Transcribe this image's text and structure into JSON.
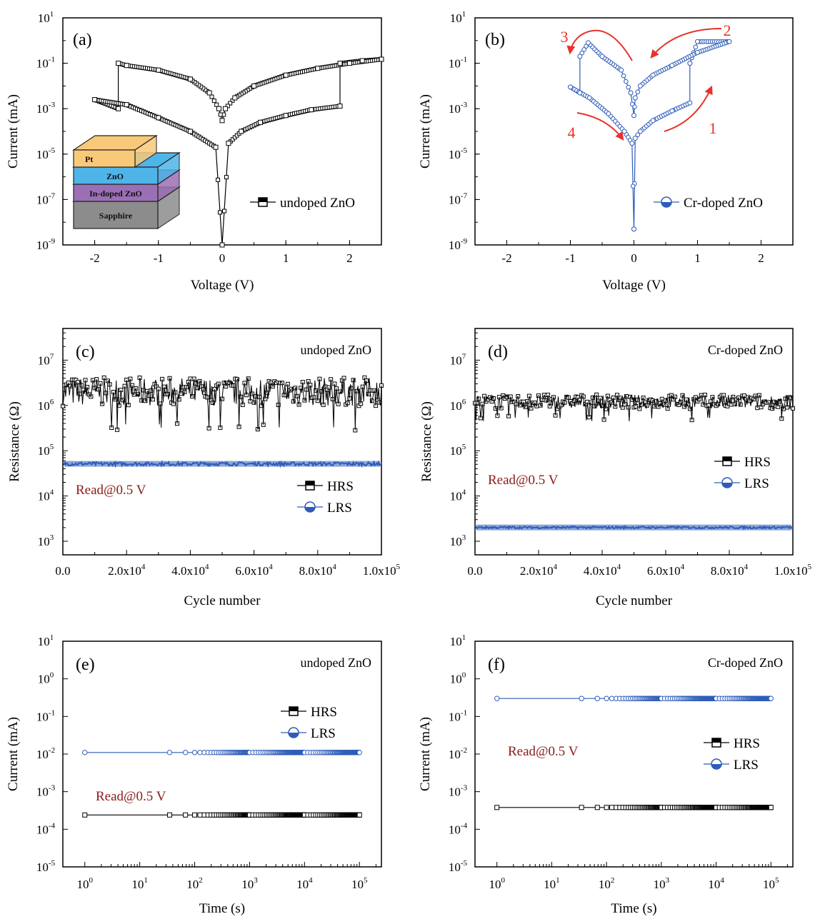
{
  "chart_data": [
    {
      "panel": "(a)",
      "type": "line",
      "xlabel": "Voltage (V)",
      "ylabel": "Current (mA)",
      "xlim": [
        -2.5,
        2.5
      ],
      "ylim_log10": [
        -9,
        1
      ],
      "y_scale": "log",
      "x_ticks": [
        "-2",
        "-1",
        "0",
        "1",
        "2"
      ],
      "y_ticks": [
        "10",
        "10",
        "10",
        "10",
        "10",
        "10"
      ],
      "y_tick_exponents": [
        "1",
        "-1",
        "-3",
        "-5",
        "-7",
        "-9"
      ],
      "legend_position": "right",
      "color": "#000000",
      "series": [
        {
          "name": "undoped ZnO",
          "x": [
            0.0,
            0.1,
            0.3,
            0.6,
            1.0,
            1.4,
            1.85,
            1.85,
            2.2,
            2.5,
            2.0,
            1.5,
            1.0,
            0.5,
            0.2,
            0.05,
            0.0,
            -0.05,
            -0.2,
            -0.5,
            -1.0,
            -1.5,
            -1.63,
            -1.63,
            -2.0,
            -1.5,
            -1.0,
            -0.5,
            -0.1,
            0.0
          ],
          "y": [
            1e-09,
            3e-05,
            0.0001,
            0.00025,
            0.0005,
            0.0009,
            0.0013,
            0.1,
            0.13,
            0.15,
            0.1,
            0.06,
            0.03,
            0.01,
            0.003,
            0.001,
            0.0003,
            0.001,
            0.005,
            0.02,
            0.05,
            0.08,
            0.1,
            0.001,
            0.0025,
            0.0015,
            0.0004,
            0.0001,
            2e-05,
            1e-09
          ]
        }
      ],
      "inset": {
        "layers": [
          "Pt",
          "ZnO",
          "In-doped ZnO",
          "Sapphire"
        ],
        "colors": [
          "#f9c97a",
          "#4fb5e8",
          "#9b6fb5",
          "#8c8c8c"
        ]
      }
    },
    {
      "panel": "(b)",
      "type": "line",
      "xlabel": "Voltage (V)",
      "ylabel": "Current (mA)",
      "xlim": [
        -2.5,
        2.5
      ],
      "ylim_log10": [
        -9,
        1
      ],
      "y_scale": "log",
      "x_ticks": [
        "-2",
        "-1",
        "0",
        "1",
        "2"
      ],
      "y_ticks": [
        "10",
        "10",
        "10",
        "10",
        "10",
        "10"
      ],
      "y_tick_exponents": [
        "1",
        "-1",
        "-3",
        "-5",
        "-7",
        "-9"
      ],
      "legend_position": "right",
      "color": "#2e5cb8",
      "arrow_labels": [
        "1",
        "2",
        "3",
        "4"
      ],
      "series": [
        {
          "name": "Cr-doped ZnO",
          "x": [
            0.0,
            0.02,
            0.1,
            0.3,
            0.6,
            0.88,
            0.88,
            1.0,
            1.5,
            1.0,
            0.6,
            0.3,
            0.1,
            0.02,
            0.0,
            -0.05,
            -0.2,
            -0.5,
            -0.72,
            -0.85,
            -0.85,
            -1.0,
            -0.7,
            -0.4,
            -0.15,
            -0.03,
            0.0
          ],
          "y": [
            5e-09,
            5e-05,
            0.0001,
            0.0003,
            0.0008,
            0.0018,
            0.1,
            0.9,
            0.9,
            0.3,
            0.08,
            0.03,
            0.01,
            0.003,
            0.0005,
            0.005,
            0.05,
            0.2,
            0.8,
            0.2,
            0.005,
            0.009,
            0.003,
            0.0006,
            0.0001,
            3e-05,
            5e-09
          ]
        }
      ]
    },
    {
      "panel": "(c)",
      "type": "scatter",
      "title": "undoped ZnO",
      "xlabel": "Cycle number",
      "ylabel": "Resistance (Ω)",
      "xlim": [
        0,
        100000
      ],
      "ylim_log10": [
        2.7,
        7.7
      ],
      "y_scale": "log",
      "x_ticks": [
        "0.0",
        "2.0x10",
        "4.0x10",
        "6.0x10",
        "8.0x10",
        "1.0x10"
      ],
      "x_tick_exponents": [
        "",
        "4",
        "4",
        "4",
        "4",
        "5"
      ],
      "y_ticks": [
        "10",
        "10",
        "10",
        "10",
        "10"
      ],
      "y_tick_exponents": [
        "3",
        "4",
        "5",
        "6",
        "7"
      ],
      "annotation": "Read@0.5 V",
      "legend_position": "lower-right",
      "series": [
        {
          "name": "HRS",
          "approx_level": 2000000,
          "spread_log10": [
            5.6,
            6.5
          ],
          "color": "#000000"
        },
        {
          "name": "LRS",
          "approx_level": 50000,
          "spread_log10": [
            4.67,
            4.75
          ],
          "color": "#2e5cb8"
        }
      ]
    },
    {
      "panel": "(d)",
      "type": "scatter",
      "title": "Cr-doped ZnO",
      "xlabel": "Cycle number",
      "ylabel": "Resistance (Ω)",
      "xlim": [
        0,
        100000
      ],
      "ylim_log10": [
        2.7,
        7.7
      ],
      "y_scale": "log",
      "x_ticks": [
        "0.0",
        "2.0x10",
        "4.0x10",
        "6.0x10",
        "8.0x10",
        "1.0x10"
      ],
      "x_tick_exponents": [
        "",
        "4",
        "4",
        "4",
        "4",
        "5"
      ],
      "y_ticks": [
        "10",
        "10",
        "10",
        "10",
        "10"
      ],
      "y_tick_exponents": [
        "3",
        "4",
        "5",
        "6",
        "7"
      ],
      "annotation": "Read@0.5 V",
      "legend_position": "right",
      "series": [
        {
          "name": "HRS",
          "approx_level": 1200000,
          "spread_log10": [
            5.8,
            6.25
          ],
          "color": "#000000"
        },
        {
          "name": "LRS",
          "approx_level": 2000,
          "spread_log10": [
            3.28,
            3.33
          ],
          "color": "#2e5cb8"
        }
      ]
    },
    {
      "panel": "(e)",
      "type": "line",
      "title": "undoped ZnO",
      "xlabel": "Time (s)",
      "ylabel": "Current (mA)",
      "xlim_log10": [
        -0.4,
        5.4
      ],
      "ylim_log10": [
        -5,
        1
      ],
      "x_scale": "log",
      "y_scale": "log",
      "x_ticks": [
        "10",
        "10",
        "10",
        "10",
        "10",
        "10"
      ],
      "x_tick_exponents": [
        "0",
        "1",
        "2",
        "3",
        "4",
        "5"
      ],
      "y_ticks": [
        "10",
        "10",
        "10",
        "10",
        "10",
        "10",
        "10"
      ],
      "y_tick_exponents": [
        "1",
        "0",
        "-1",
        "-2",
        "-3",
        "-4",
        "-5"
      ],
      "annotation": "Read@0.5 V",
      "legend_position": "right",
      "series": [
        {
          "name": "HRS",
          "x_range": [
            1,
            100000
          ],
          "value": 0.00024,
          "color": "#000000"
        },
        {
          "name": "LRS",
          "x_range": [
            1,
            100000
          ],
          "value": 0.011,
          "color": "#2e5cb8"
        }
      ]
    },
    {
      "panel": "(f)",
      "type": "line",
      "title": "Cr-doped ZnO",
      "xlabel": "Time (s)",
      "ylabel": "Current (mA)",
      "xlim_log10": [
        -0.4,
        5.4
      ],
      "ylim_log10": [
        -5,
        1
      ],
      "x_scale": "log",
      "y_scale": "log",
      "x_ticks": [
        "10",
        "10",
        "10",
        "10",
        "10",
        "10"
      ],
      "x_tick_exponents": [
        "0",
        "1",
        "2",
        "3",
        "4",
        "5"
      ],
      "y_ticks": [
        "10",
        "10",
        "10",
        "10",
        "10",
        "10",
        "10"
      ],
      "y_tick_exponents": [
        "1",
        "0",
        "-1",
        "-2",
        "-3",
        "-4",
        "-5"
      ],
      "annotation": "Read@0.5 V",
      "legend_position": "right",
      "series": [
        {
          "name": "HRS",
          "x_range": [
            1,
            100000
          ],
          "value": 0.00038,
          "color": "#000000"
        },
        {
          "name": "LRS",
          "x_range": [
            1,
            100000
          ],
          "value": 0.3,
          "color": "#2e5cb8"
        }
      ]
    }
  ]
}
